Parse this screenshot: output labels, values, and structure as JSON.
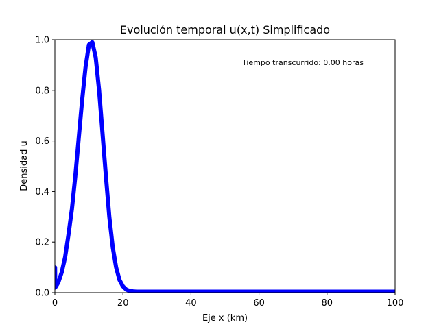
{
  "chart_data": {
    "type": "line",
    "title": "Evolución temporal u(x,t) Simplificado",
    "xlabel": "Eje x (km)",
    "ylabel": "Densidad u",
    "xlim": [
      0,
      100
    ],
    "ylim": [
      0,
      1
    ],
    "x_ticks": [
      "0",
      "20",
      "40",
      "60",
      "80",
      "100"
    ],
    "y_ticks": [
      "0.0",
      "0.2",
      "0.4",
      "0.6",
      "0.8",
      "1.0"
    ],
    "annotation": "Tiempo transcurrido: 0.00 horas",
    "grid": false,
    "legend": "none",
    "series": [
      {
        "color": "#0000ff",
        "x": [
          0,
          0.05,
          0.1,
          1,
          2,
          3,
          4,
          5,
          6,
          7,
          8,
          9,
          10,
          11,
          12,
          13,
          14,
          15,
          16,
          17,
          18,
          19,
          20,
          21,
          22,
          23,
          24,
          25,
          30,
          40,
          50,
          60,
          70,
          80,
          90,
          100
        ],
        "y": [
          0.1,
          0.1,
          0.02,
          0.04,
          0.08,
          0.14,
          0.23,
          0.33,
          0.46,
          0.61,
          0.76,
          0.89,
          0.98,
          0.99,
          0.93,
          0.8,
          0.63,
          0.46,
          0.3,
          0.18,
          0.1,
          0.05,
          0.025,
          0.012,
          0.007,
          0.005,
          0.004,
          0.004,
          0.004,
          0.004,
          0.004,
          0.004,
          0.004,
          0.004,
          0.004,
          0.004
        ]
      }
    ]
  }
}
